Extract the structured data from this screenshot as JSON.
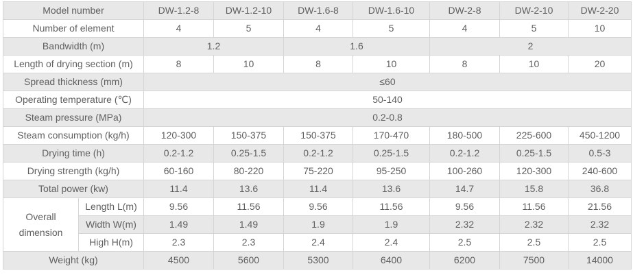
{
  "colors": {
    "row_shade": "#e8e8e8",
    "row_plain": "#ffffff",
    "border": "#d5d5d5",
    "text": "#5f5f5f"
  },
  "table": {
    "rows": [
      {
        "shaded": true,
        "cells": [
          {
            "t": "Model number",
            "cs": 2,
            "label": true
          },
          {
            "t": "DW-1.2-8"
          },
          {
            "t": "DW-1.2-10"
          },
          {
            "t": "DW-1.6-8"
          },
          {
            "t": "DW-1.6-10"
          },
          {
            "t": "DW-2-8"
          },
          {
            "t": "DW-2-10"
          },
          {
            "t": "DW-2-20"
          }
        ]
      },
      {
        "shaded": false,
        "cells": [
          {
            "t": "Number of element",
            "cs": 2,
            "label": true
          },
          {
            "t": "4"
          },
          {
            "t": "5"
          },
          {
            "t": "4"
          },
          {
            "t": "5"
          },
          {
            "t": "4"
          },
          {
            "t": "5"
          },
          {
            "t": "10"
          }
        ]
      },
      {
        "shaded": true,
        "cells": [
          {
            "t": "Bandwidth (m)",
            "cs": 2,
            "label": true
          },
          {
            "t": "1.2",
            "cs": 2
          },
          {
            "t": "1.6",
            "cs": 2
          },
          {
            "t": "2",
            "cs": 3
          }
        ]
      },
      {
        "shaded": false,
        "cells": [
          {
            "t": "Length of drying section (m)",
            "cs": 2,
            "label": true
          },
          {
            "t": "8"
          },
          {
            "t": "10"
          },
          {
            "t": "8"
          },
          {
            "t": "10"
          },
          {
            "t": "8"
          },
          {
            "t": "10"
          },
          {
            "t": "20"
          }
        ]
      },
      {
        "shaded": true,
        "cells": [
          {
            "t": "Spread thickness (mm)",
            "cs": 2,
            "label": true
          },
          {
            "t": "≤60",
            "cs": 7
          }
        ]
      },
      {
        "shaded": false,
        "cells": [
          {
            "t": "Operating temperature (℃)",
            "cs": 2,
            "label": true
          },
          {
            "t": "50-140",
            "cs": 7
          }
        ]
      },
      {
        "shaded": true,
        "cells": [
          {
            "t": "Steam pressure (MPa)",
            "cs": 2,
            "label": true
          },
          {
            "t": "0.2-0.8",
            "cs": 7
          }
        ]
      },
      {
        "shaded": false,
        "cells": [
          {
            "t": "Steam consumption (kg/h)",
            "cs": 2,
            "label": true
          },
          {
            "t": "120-300"
          },
          {
            "t": "150-375"
          },
          {
            "t": "150-375"
          },
          {
            "t": "170-470"
          },
          {
            "t": "180-500"
          },
          {
            "t": "225-600"
          },
          {
            "t": "450-1200"
          }
        ]
      },
      {
        "shaded": true,
        "cells": [
          {
            "t": "Drying time (h)",
            "cs": 2,
            "label": true
          },
          {
            "t": "0.2-1.2"
          },
          {
            "t": "0.25-1.5"
          },
          {
            "t": "0.2-1.2"
          },
          {
            "t": "0.25-1.5"
          },
          {
            "t": "0.2-1.2"
          },
          {
            "t": "0.25-1.5"
          },
          {
            "t": "0.5-3"
          }
        ]
      },
      {
        "shaded": false,
        "cells": [
          {
            "t": "Drying strength (kg/h)",
            "cs": 2,
            "label": true
          },
          {
            "t": "60-160"
          },
          {
            "t": "80-220"
          },
          {
            "t": "75-220"
          },
          {
            "t": "95-250"
          },
          {
            "t": "100-260"
          },
          {
            "t": "120-300"
          },
          {
            "t": "240-600"
          }
        ]
      },
      {
        "shaded": true,
        "cells": [
          {
            "t": "Total power (kw)",
            "cs": 2,
            "label": true
          },
          {
            "t": "11.4"
          },
          {
            "t": "13.6"
          },
          {
            "t": "11.4"
          },
          {
            "t": "13.6"
          },
          {
            "t": "14.7"
          },
          {
            "t": "15.8"
          },
          {
            "t": "36.8"
          }
        ]
      },
      {
        "shaded": false,
        "cells": [
          {
            "t": "Overall dimension",
            "rs": 3,
            "label": true
          },
          {
            "t": "Length L(m)",
            "label": true
          },
          {
            "t": "9.56"
          },
          {
            "t": "11.56"
          },
          {
            "t": "9.56"
          },
          {
            "t": "11.56"
          },
          {
            "t": "9.56"
          },
          {
            "t": "11.56"
          },
          {
            "t": "21.56"
          }
        ]
      },
      {
        "shaded": true,
        "cells": [
          {
            "t": "Width W(m)",
            "label": true
          },
          {
            "t": "1.49"
          },
          {
            "t": "1.49"
          },
          {
            "t": "1.9"
          },
          {
            "t": "1.9"
          },
          {
            "t": "2.32"
          },
          {
            "t": "2.32"
          },
          {
            "t": "2.32"
          }
        ]
      },
      {
        "shaded": false,
        "cells": [
          {
            "t": "High H(m)",
            "label": true
          },
          {
            "t": "2.3"
          },
          {
            "t": "2.3"
          },
          {
            "t": "2.4"
          },
          {
            "t": "2.4"
          },
          {
            "t": "2.5"
          },
          {
            "t": "2.5"
          },
          {
            "t": "2.5"
          }
        ]
      },
      {
        "shaded": true,
        "cells": [
          {
            "t": "Weight (kg)",
            "cs": 2,
            "label": true
          },
          {
            "t": "4500"
          },
          {
            "t": "5600"
          },
          {
            "t": "5300"
          },
          {
            "t": "6400"
          },
          {
            "t": "6200"
          },
          {
            "t": "7500"
          },
          {
            "t": "14000"
          }
        ]
      }
    ]
  }
}
